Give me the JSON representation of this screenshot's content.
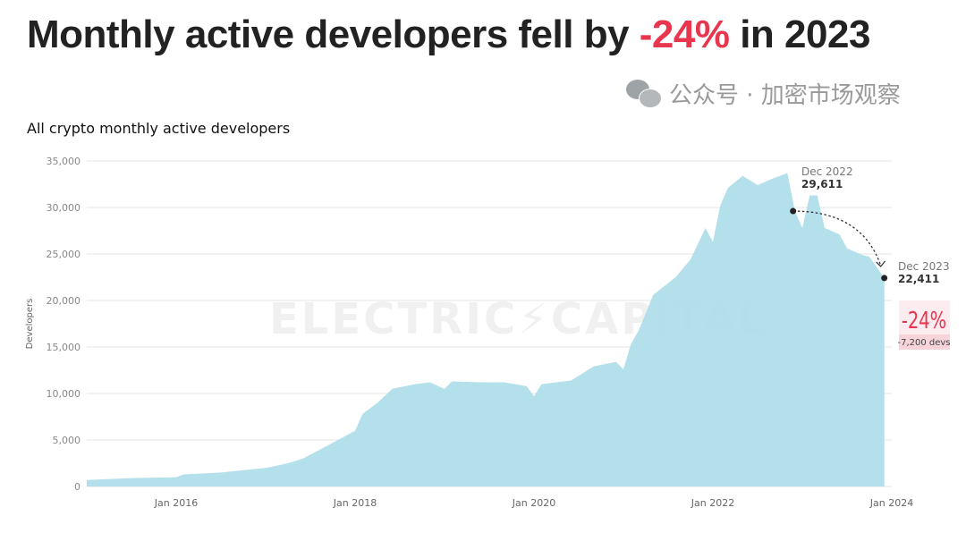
{
  "headline": {
    "prefix": "Monthly active developers fell by ",
    "highlight": "-24%",
    "suffix": " in 2023"
  },
  "colors": {
    "area": "#aedde9",
    "accent": "#e8364f",
    "badge_bg": "#fdecef",
    "badge_sub_bg": "#f7d3da"
  },
  "watermark": "ELECTRIC⚡CAPITAL",
  "wechat_watermark": "公众号 · 加密市场观察",
  "chart_data": {
    "type": "area",
    "title": "All crypto monthly active developers",
    "xlabel": "",
    "ylabel": "Developers",
    "ylim": [
      0,
      35000
    ],
    "xlim": [
      "2015-01",
      "2023-12"
    ],
    "yticks": [
      "0",
      "5,000",
      "10,000",
      "15,000",
      "20,000",
      "25,000",
      "30,000",
      "35,000"
    ],
    "ytick_values": [
      0,
      5000,
      10000,
      15000,
      20000,
      25000,
      30000,
      35000
    ],
    "xticks": [
      "Jan 2016",
      "Jan 2018",
      "Jan 2020",
      "Jan 2022",
      "Jan 2024"
    ],
    "xtick_dates": [
      "2016-01",
      "2018-01",
      "2020-01",
      "2022-01",
      "2024-01"
    ],
    "grid": "horizontal",
    "x": [
      "2015-01",
      "2015-07",
      "2016-01",
      "2016-02",
      "2016-07",
      "2017-01",
      "2017-04",
      "2017-06",
      "2017-10",
      "2018-01",
      "2018-02",
      "2018-04",
      "2018-06",
      "2018-09",
      "2018-11",
      "2019-01",
      "2019-02",
      "2019-06",
      "2019-09",
      "2019-12",
      "2020-01",
      "2020-02",
      "2020-06",
      "2020-09",
      "2020-12",
      "2021-01",
      "2021-02",
      "2021-03",
      "2021-05",
      "2021-08",
      "2021-10",
      "2021-12",
      "2022-01",
      "2022-02",
      "2022-03",
      "2022-05",
      "2022-07",
      "2022-09",
      "2022-11",
      "2022-12",
      "2023-01",
      "2023-02",
      "2023-03",
      "2023-04",
      "2023-06",
      "2023-07",
      "2023-09",
      "2023-10",
      "2023-12"
    ],
    "values": [
      700,
      900,
      1000,
      1300,
      1500,
      2000,
      2500,
      3000,
      4700,
      6000,
      7800,
      9000,
      10500,
      11000,
      11200,
      10500,
      11300,
      11200,
      11200,
      10800,
      9700,
      11000,
      11400,
      12900,
      13400,
      12600,
      15300,
      16700,
      20600,
      22500,
      24400,
      27800,
      26300,
      30200,
      32100,
      33400,
      32400,
      33100,
      33700,
      29611,
      27800,
      31300,
      31300,
      27800,
      27100,
      25600,
      24900,
      24700,
      22411
    ],
    "annotations": [
      {
        "date": "2022-12",
        "label": "Dec 2022",
        "value_label": "29,611",
        "value": 29611
      },
      {
        "date": "2023-12",
        "label": "Dec 2023",
        "value_label": "22,411",
        "value": 22411
      }
    ],
    "change": {
      "percent": "-24%",
      "devs": "-7,200 devs"
    }
  }
}
